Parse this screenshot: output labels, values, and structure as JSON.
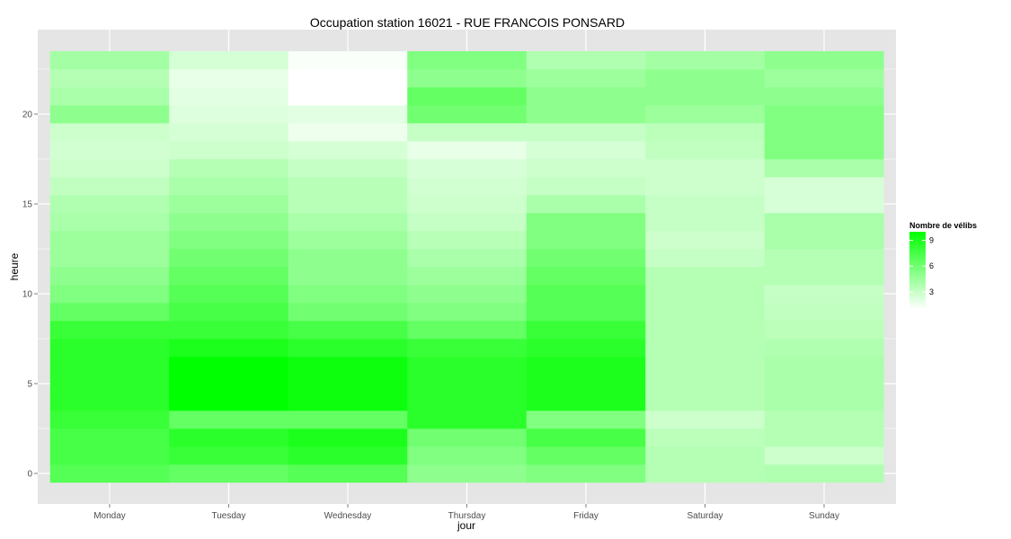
{
  "chart_data": {
    "type": "heatmap",
    "title": "Occupation station 16021 - RUE FRANCOIS PONSARD",
    "xlabel": "jour",
    "ylabel": "heure",
    "categories": [
      "Monday",
      "Tuesday",
      "Wednesday",
      "Thursday",
      "Friday",
      "Saturday",
      "Sunday"
    ],
    "y": [
      0,
      1,
      2,
      3,
      4,
      5,
      6,
      7,
      8,
      9,
      10,
      11,
      12,
      13,
      14,
      15,
      16,
      17,
      18,
      19,
      20,
      21,
      22,
      23
    ],
    "ylim": [
      -0.5,
      23.5
    ],
    "yticks": [
      0,
      5,
      10,
      15,
      20
    ],
    "grid": true,
    "values": [
      [
        7.0,
        7.5,
        7.5,
        8.0,
        8.5,
        8.5,
        8.5,
        8.5,
        8.0,
        6.5,
        5.5,
        5.0,
        4.5,
        4.5,
        4.0,
        3.8,
        3.2,
        2.8,
        2.6,
        2.8,
        5.0,
        4.0,
        3.6,
        4.2
      ],
      [
        6.5,
        8.0,
        8.5,
        6.5,
        10.0,
        10.0,
        10.0,
        9.0,
        8.0,
        7.5,
        7.0,
        6.5,
        6.0,
        5.5,
        5.0,
        4.5,
        4.0,
        3.6,
        2.8,
        2.5,
        2.2,
        2.0,
        1.8,
        2.5
      ],
      [
        7.0,
        8.5,
        9.0,
        6.5,
        9.5,
        9.5,
        9.5,
        8.5,
        7.5,
        6.0,
        5.5,
        5.0,
        5.0,
        4.5,
        4.0,
        3.5,
        3.5,
        3.0,
        2.5,
        1.6,
        2.0,
        1.0,
        1.0,
        1.2
      ],
      [
        5.0,
        5.5,
        6.0,
        8.5,
        8.5,
        8.5,
        8.5,
        8.0,
        6.5,
        5.5,
        5.0,
        4.5,
        4.0,
        3.5,
        3.0,
        2.8,
        2.6,
        2.4,
        1.8,
        3.0,
        6.0,
        6.5,
        5.0,
        5.5
      ],
      [
        5.5,
        6.5,
        7.5,
        5.5,
        9.0,
        9.0,
        9.0,
        8.5,
        8.0,
        7.0,
        7.0,
        6.5,
        6.0,
        5.5,
        5.5,
        4.0,
        3.0,
        2.8,
        2.5,
        3.0,
        5.0,
        5.0,
        4.5,
        3.8
      ],
      [
        3.6,
        3.6,
        3.4,
        2.8,
        3.6,
        3.6,
        3.6,
        3.6,
        3.6,
        3.6,
        3.6,
        3.6,
        3.0,
        2.8,
        3.0,
        3.0,
        2.8,
        2.8,
        3.2,
        3.4,
        4.5,
        5.0,
        5.0,
        4.2
      ],
      [
        3.8,
        2.8,
        3.6,
        3.6,
        4.0,
        4.0,
        4.0,
        3.8,
        3.4,
        3.2,
        3.0,
        3.6,
        3.6,
        4.0,
        4.0,
        2.4,
        2.4,
        4.0,
        5.5,
        5.5,
        5.5,
        5.0,
        4.5,
        5.0
      ]
    ],
    "legend": {
      "title": "Nombre de vélibs",
      "placement": "right",
      "ticks": [
        3,
        6,
        9
      ],
      "range": [
        1,
        10
      ],
      "low_color": "#ffffff",
      "high_color": "#00ff00"
    },
    "panel_color": "#e5e5e5",
    "grid_color": "#ffffff"
  }
}
